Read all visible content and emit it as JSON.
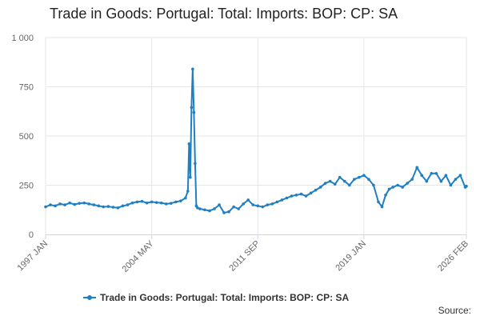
{
  "chart_data": {
    "type": "line",
    "title": "Trade in Goods: Portugal: Total: Imports: BOP: CP: SA",
    "xlabel": "",
    "ylabel": "",
    "ylim": [
      0,
      1000
    ],
    "yticks": [
      0,
      250,
      500,
      750,
      1000
    ],
    "ytick_labels": [
      "0",
      "250",
      "500",
      "750",
      "1 000"
    ],
    "xticks": [
      "1997 JAN",
      "2004 MAY",
      "2011 SEP",
      "2019 JAN",
      "2026 FEB"
    ],
    "grid": true,
    "legend_position": "bottom",
    "source_label": "Source:",
    "series": [
      {
        "name": "Trade in Goods: Portugal: Total: Imports: BOP: CP: SA",
        "color": "#1f7fc2",
        "x": [
          "1997 JAN",
          "1997 MAY",
          "1997 SEP",
          "1998 JAN",
          "1998 MAY",
          "1998 SEP",
          "1999 JAN",
          "1999 MAY",
          "1999 SEP",
          "2000 JAN",
          "2000 MAY",
          "2000 SEP",
          "2001 JAN",
          "2001 MAY",
          "2001 SEP",
          "2002 JAN",
          "2002 MAY",
          "2002 SEP",
          "2003 JAN",
          "2003 MAY",
          "2003 SEP",
          "2004 JAN",
          "2004 MAY",
          "2004 SEP",
          "2005 JAN",
          "2005 MAY",
          "2005 SEP",
          "2006 JAN",
          "2006 MAY",
          "2006 SEP",
          "2006 NOV",
          "2006 DEC",
          "2007 JAN",
          "2007 FEB",
          "2007 MAR",
          "2007 APR",
          "2007 MAY",
          "2007 JUN",
          "2007 JUL",
          "2007 SEP",
          "2008 JAN",
          "2008 MAY",
          "2008 SEP",
          "2009 JAN",
          "2009 MAY",
          "2009 SEP",
          "2010 JAN",
          "2010 MAY",
          "2010 SEP",
          "2011 JAN",
          "2011 MAY",
          "2011 SEP",
          "2012 JAN",
          "2012 MAY",
          "2012 SEP",
          "2013 JAN",
          "2013 MAY",
          "2013 SEP",
          "2014 JAN",
          "2014 MAY",
          "2014 SEP",
          "2015 JAN",
          "2015 MAY",
          "2015 SEP",
          "2016 JAN",
          "2016 MAY",
          "2016 SEP",
          "2017 JAN",
          "2017 MAY",
          "2017 SEP",
          "2018 JAN",
          "2018 MAY",
          "2018 SEP",
          "2019 JAN",
          "2019 MAY",
          "2019 SEP",
          "2020 JAN",
          "2020 APR",
          "2020 JUL",
          "2020 OCT",
          "2021 JAN",
          "2021 MAY",
          "2021 SEP",
          "2022 JAN",
          "2022 MAY",
          "2022 SEP",
          "2023 JAN",
          "2023 MAY",
          "2023 SEP",
          "2024 JAN",
          "2024 MAY",
          "2024 SEP",
          "2025 JAN",
          "2025 MAY",
          "2025 SEP",
          "2026 JAN",
          "2026 FEB"
        ],
        "values": [
          140,
          150,
          145,
          155,
          150,
          160,
          152,
          158,
          160,
          155,
          150,
          145,
          140,
          142,
          138,
          135,
          145,
          150,
          160,
          165,
          168,
          160,
          165,
          162,
          160,
          155,
          158,
          165,
          170,
          185,
          220,
          460,
          290,
          645,
          840,
          620,
          360,
          145,
          135,
          130,
          125,
          120,
          130,
          150,
          110,
          115,
          140,
          130,
          155,
          175,
          150,
          145,
          140,
          150,
          155,
          165,
          175,
          185,
          195,
          200,
          205,
          195,
          210,
          225,
          240,
          260,
          270,
          255,
          290,
          270,
          250,
          280,
          290,
          300,
          280,
          250,
          165,
          140,
          200,
          230,
          240,
          250,
          240,
          260,
          280,
          340,
          300,
          270,
          310,
          310,
          270,
          300,
          250,
          280,
          300,
          240,
          245
        ]
      }
    ]
  }
}
